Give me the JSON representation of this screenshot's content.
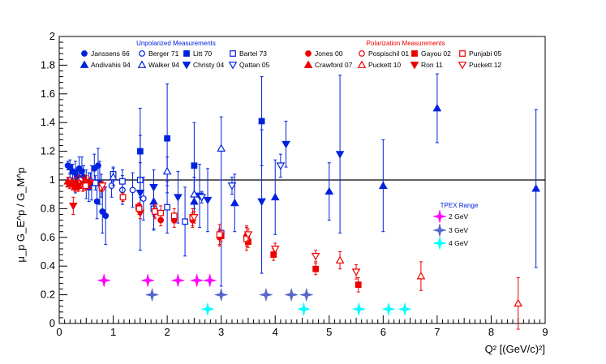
{
  "chart_data": {
    "type": "scatter",
    "xlabel": "Q² [(GeV/c)²]",
    "ylabel": "μ_p G_E^p / G_M^p",
    "xlim": [
      0,
      9
    ],
    "ylim": [
      0,
      2
    ],
    "x_ticks": [
      "0",
      "1",
      "2",
      "3",
      "4",
      "5",
      "6",
      "7",
      "8",
      "9"
    ],
    "y_ticks": [
      "0",
      "0.2",
      "0.4",
      "0.6",
      "0.8",
      "1",
      "1.2",
      "1.4",
      "1.6",
      "1.8",
      "2"
    ],
    "reference_line": 1,
    "legend_titles": {
      "unpolarized": "Unpolarized Measurements",
      "polarization": "Polarization Measurements",
      "tpex": "TPEX Range"
    },
    "colors": {
      "blue": "#0022dd",
      "red": "#ee0000",
      "magenta": "#ff00ff",
      "slate": "#5566cc",
      "cyan": "#00ffff"
    },
    "series": [
      {
        "name": "Janssens 66",
        "group": "unpolarized",
        "marker": "circle",
        "fill": true,
        "color": "#0022dd",
        "points": [
          [
            0.16,
            1.1,
            0.03
          ],
          [
            0.2,
            1.09,
            0.05
          ],
          [
            0.25,
            1.06,
            0.05
          ],
          [
            0.3,
            1.05,
            0.08
          ],
          [
            0.33,
            1.02,
            0.06
          ],
          [
            0.37,
            1.08,
            0.08
          ],
          [
            0.42,
            1.06,
            0.1
          ],
          [
            0.45,
            1.02,
            0.08
          ],
          [
            0.5,
            0.97,
            0.1
          ],
          [
            0.55,
            0.95,
            0.1
          ],
          [
            0.6,
            0.98,
            0.12
          ],
          [
            0.65,
            1.08,
            0.1
          ],
          [
            0.7,
            0.85,
            0.12
          ],
          [
            0.72,
            1.1,
            0.12
          ],
          [
            0.75,
            0.98,
            0.15
          ],
          [
            0.8,
            0.78,
            0.15
          ],
          [
            0.86,
            0.75,
            0.2
          ]
        ]
      },
      {
        "name": "Berger 71",
        "group": "unpolarized",
        "marker": "circle",
        "fill": false,
        "color": "#0022dd",
        "points": [
          [
            0.2,
            1.0,
            0.05
          ],
          [
            0.3,
            0.97,
            0.06
          ],
          [
            0.39,
            1.0,
            0.05
          ],
          [
            0.58,
            0.99,
            0.06
          ],
          [
            0.78,
            0.96,
            0.08
          ],
          [
            0.97,
            0.96,
            0.08
          ],
          [
            1.17,
            0.93,
            0.1
          ],
          [
            1.36,
            0.93,
            0.12
          ],
          [
            1.56,
            0.87,
            0.15
          ],
          [
            1.75,
            0.8,
            0.15
          ]
        ]
      },
      {
        "name": "Litt 70",
        "group": "unpolarized",
        "marker": "square",
        "fill": true,
        "color": "#0022dd",
        "points": [
          [
            1.5,
            1.2,
            0.3
          ],
          [
            2.0,
            1.29,
            0.38
          ],
          [
            2.5,
            1.1,
            0.3
          ],
          [
            3.75,
            1.41,
            0.31
          ]
        ]
      },
      {
        "name": "Bartel 73",
        "group": "unpolarized",
        "marker": "square",
        "fill": false,
        "color": "#0022dd",
        "points": [
          [
            0.67,
            0.98,
            0.05
          ],
          [
            1.0,
            1.04,
            0.05
          ],
          [
            1.17,
            0.99,
            0.08
          ],
          [
            1.5,
            1.0,
            0.12
          ],
          [
            1.75,
            0.8,
            0.14
          ],
          [
            2.0,
            0.81,
            0.18
          ],
          [
            2.33,
            0.71,
            0.24
          ],
          [
            3.0,
            0.63,
            0.37
          ]
        ]
      },
      {
        "name": "Andivahis 94",
        "group": "unpolarized",
        "marker": "triangle",
        "fill": true,
        "color": "#0022dd",
        "points": [
          [
            1.75,
            0.85,
            0.1
          ],
          [
            2.5,
            0.85,
            0.15
          ],
          [
            3.25,
            0.84,
            0.2
          ],
          [
            4.0,
            0.88,
            0.26
          ],
          [
            5.0,
            0.92,
            0.2
          ],
          [
            6.0,
            0.96,
            0.32
          ],
          [
            7.0,
            1.5,
            0.24
          ],
          [
            8.83,
            0.94,
            0.55
          ]
        ]
      },
      {
        "name": "Walker 94",
        "group": "unpolarized",
        "marker": "triangle",
        "fill": false,
        "color": "#0022dd",
        "points": [
          [
            1.0,
            1.02,
            0.06
          ],
          [
            2.0,
            1.06,
            0.1
          ],
          [
            2.5,
            0.9,
            0.12
          ],
          [
            3.0,
            1.22,
            0.22
          ]
        ]
      },
      {
        "name": "Christy 04",
        "group": "unpolarized",
        "marker": "triangle-down",
        "fill": true,
        "color": "#0022dd",
        "points": [
          [
            1.5,
            0.91,
            0.4
          ],
          [
            1.75,
            0.95,
            0.12
          ],
          [
            2.2,
            0.88,
            0.18
          ],
          [
            2.6,
            0.89,
            0.22
          ],
          [
            2.75,
            0.86,
            0.22
          ],
          [
            3.75,
            0.85,
            0.5
          ],
          [
            4.2,
            1.25,
            0.16
          ],
          [
            5.2,
            1.18,
            0.55
          ]
        ]
      },
      {
        "name": "Qattan 05",
        "group": "unpolarized",
        "marker": "triangle-down",
        "fill": false,
        "color": "#0022dd",
        "points": [
          [
            2.64,
            0.88,
            0.04
          ],
          [
            3.2,
            0.96,
            0.06
          ],
          [
            4.1,
            1.1,
            0.08
          ]
        ]
      },
      {
        "name": "Jones 00",
        "group": "polarization",
        "marker": "circle",
        "fill": true,
        "color": "#ee0000",
        "points": [
          [
            0.49,
            0.99,
            0.03
          ],
          [
            0.79,
            0.95,
            0.03
          ],
          [
            1.18,
            0.88,
            0.02
          ],
          [
            1.48,
            0.8,
            0.03
          ],
          [
            1.77,
            0.78,
            0.04
          ],
          [
            1.88,
            0.72,
            0.04
          ],
          [
            2.13,
            0.72,
            0.05
          ],
          [
            2.47,
            0.72,
            0.05
          ],
          [
            2.97,
            0.6,
            0.06
          ],
          [
            3.47,
            0.61,
            0.07
          ]
        ]
      },
      {
        "name": "Crawford 07",
        "group": "polarization",
        "marker": "triangle",
        "fill": true,
        "color": "#ee0000",
        "points": [
          [
            0.16,
            0.99,
            0.03
          ],
          [
            0.19,
            0.97,
            0.03
          ],
          [
            0.23,
            0.98,
            0.03
          ],
          [
            0.29,
            0.95,
            0.03
          ],
          [
            0.35,
            0.96,
            0.03
          ]
        ]
      },
      {
        "name": "Pospischil 01",
        "group": "polarization",
        "marker": "circle",
        "fill": false,
        "color": "#ee0000",
        "points": [
          [
            0.37,
            0.98,
            0.05
          ],
          [
            0.44,
            0.97,
            0.05
          ],
          [
            0.5,
            0.98,
            0.05
          ]
        ]
      },
      {
        "name": "Puckett 10",
        "group": "polarization",
        "marker": "triangle",
        "fill": false,
        "color": "#ee0000",
        "points": [
          [
            5.2,
            0.44,
            0.06
          ],
          [
            6.7,
            0.33,
            0.1
          ],
          [
            8.5,
            0.14,
            0.18
          ]
        ]
      },
      {
        "name": "Gayou 02",
        "group": "polarization",
        "marker": "square",
        "fill": true,
        "color": "#ee0000",
        "points": [
          [
            1.47,
            0.81,
            0.03
          ],
          [
            3.0,
            0.61,
            0.04
          ],
          [
            3.5,
            0.57,
            0.04
          ],
          [
            3.97,
            0.48,
            0.04
          ],
          [
            4.75,
            0.38,
            0.04
          ],
          [
            5.54,
            0.27,
            0.05
          ]
        ]
      },
      {
        "name": "Ron 11",
        "group": "polarization",
        "marker": "triangle-down",
        "fill": true,
        "color": "#ee0000",
        "points": [
          [
            0.26,
            0.82,
            0.06
          ],
          [
            0.3,
            0.98,
            0.04
          ],
          [
            0.35,
            0.96,
            0.04
          ],
          [
            0.45,
            0.97,
            0.04
          ],
          [
            0.57,
            0.98,
            0.04
          ],
          [
            1.5,
            0.77,
            0.04
          ]
        ]
      },
      {
        "name": "Punjabi 05",
        "group": "polarization",
        "marker": "square",
        "fill": false,
        "color": "#ee0000",
        "points": [
          [
            0.49,
            0.96,
            0.03
          ],
          [
            0.79,
            0.95,
            0.03
          ],
          [
            1.18,
            0.88,
            0.03
          ],
          [
            1.48,
            0.8,
            0.04
          ],
          [
            1.77,
            0.78,
            0.05
          ],
          [
            1.88,
            0.77,
            0.05
          ],
          [
            2.13,
            0.75,
            0.05
          ],
          [
            2.47,
            0.74,
            0.06
          ],
          [
            2.97,
            0.62,
            0.07
          ],
          [
            3.47,
            0.59,
            0.08
          ]
        ]
      },
      {
        "name": "Puckett 12",
        "group": "polarization",
        "marker": "triangle-down",
        "fill": false,
        "color": "#ee0000",
        "points": [
          [
            0.8,
            0.96,
            0.03
          ],
          [
            2.5,
            0.74,
            0.04
          ],
          [
            3.5,
            0.62,
            0.04
          ],
          [
            4.0,
            0.52,
            0.04
          ],
          [
            4.75,
            0.47,
            0.04
          ],
          [
            5.5,
            0.36,
            0.05
          ]
        ]
      }
    ],
    "tpex": [
      {
        "name": "2 GeV",
        "color": "#ff00ff",
        "points": [
          [
            0.83,
            0.3
          ],
          [
            1.64,
            0.3
          ],
          [
            2.2,
            0.3
          ],
          [
            2.55,
            0.3
          ],
          [
            2.79,
            0.3
          ]
        ]
      },
      {
        "name": "3 GeV",
        "color": "#5566cc",
        "points": [
          [
            1.72,
            0.2
          ],
          [
            3.0,
            0.2
          ],
          [
            3.83,
            0.2
          ],
          [
            4.3,
            0.2
          ],
          [
            4.58,
            0.2
          ]
        ]
      },
      {
        "name": "4 GeV",
        "color": "#00ffff",
        "points": [
          [
            2.75,
            0.1
          ],
          [
            4.53,
            0.1
          ],
          [
            5.55,
            0.1
          ],
          [
            6.1,
            0.1
          ],
          [
            6.4,
            0.1
          ]
        ]
      }
    ]
  }
}
